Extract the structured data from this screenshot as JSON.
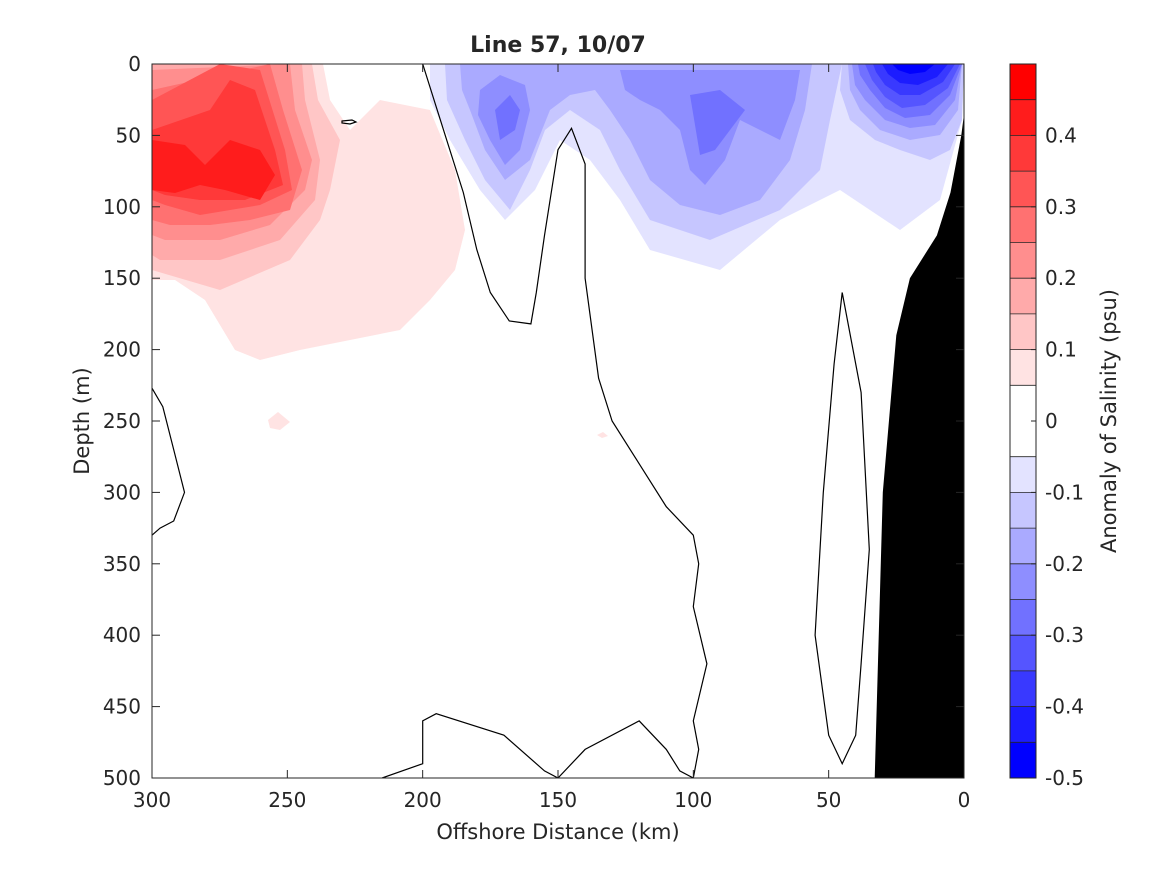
{
  "chart_data": {
    "type": "contourf",
    "title": "Line 57, 10/07",
    "xlabel": "Offshore Distance (km)",
    "ylabel": "Depth (m)",
    "colorbar_label": "Anomaly of Salinity (psu)",
    "xlim": [
      300,
      0
    ],
    "ylim": [
      500,
      0
    ],
    "x_reversed": true,
    "y_reversed": true,
    "x_ticks": [
      300,
      250,
      200,
      150,
      100,
      50,
      0
    ],
    "x_tick_labels": [
      "300",
      "250",
      "200",
      "150",
      "100",
      "50",
      "0"
    ],
    "y_ticks": [
      0,
      50,
      100,
      150,
      200,
      250,
      300,
      350,
      400,
      450,
      500
    ],
    "y_tick_labels": [
      "0",
      "50",
      "100",
      "150",
      "200",
      "250",
      "300",
      "350",
      "400",
      "450",
      "500"
    ],
    "colorbar": {
      "range": [
        -0.5,
        0.5
      ],
      "ticks": [
        0.4,
        0.3,
        0.2,
        0.1,
        0,
        -0.1,
        -0.2,
        -0.3,
        -0.4,
        -0.5
      ],
      "tick_labels": [
        "0.4",
        "0.3",
        "0.2",
        "0.1",
        "0",
        "-0.1",
        "-0.2",
        "-0.3",
        "-0.4",
        "-0.5"
      ],
      "levels": [
        -0.5,
        -0.45,
        -0.4,
        -0.35,
        -0.3,
        -0.25,
        -0.2,
        -0.15,
        -0.1,
        -0.05,
        0.05,
        0.1,
        0.15,
        0.2,
        0.25,
        0.3,
        0.35,
        0.4,
        0.45,
        0.5
      ],
      "colors": [
        "#0000ff",
        "#1c1cff",
        "#3939ff",
        "#5555ff",
        "#7171ff",
        "#8e8eff",
        "#aaaaff",
        "#c6c6ff",
        "#e3e3ff",
        "#ffffff",
        "#ffe3e3",
        "#ffc6c6",
        "#ffaaaa",
        "#ff8e8e",
        "#ff7171",
        "#ff5555",
        "#ff3939",
        "#ff1c1c",
        "#ff0000"
      ]
    },
    "anomaly_regions": [
      {
        "name": "salty-core-offshore",
        "level": 0.4,
        "x": [
          295,
          260
        ],
        "depth": [
          60,
          100
        ]
      },
      {
        "name": "salty-layer-offshore",
        "level": 0.1,
        "x": [
          300,
          200
        ],
        "depth": [
          0,
          200
        ]
      },
      {
        "name": "fresh-upper-central",
        "level": -0.2,
        "x": [
          190,
          90
        ],
        "depth": [
          0,
          120
        ]
      },
      {
        "name": "fresh-core-nearshore",
        "level": -0.4,
        "x": [
          40,
          5
        ],
        "depth": [
          0,
          40
        ]
      }
    ],
    "land_mask": {
      "color": "#000000",
      "x": [
        33,
        30,
        25,
        20,
        10,
        5,
        1,
        0,
        0
      ],
      "depth": [
        500,
        300,
        190,
        150,
        120,
        90,
        50,
        35,
        500
      ]
    },
    "zero_contours": [
      {
        "x": [
          200,
          195,
          185,
          180,
          175,
          168,
          160,
          158,
          155,
          150,
          145,
          140,
          140,
          135,
          130,
          120,
          110,
          100,
          98,
          100,
          95,
          100,
          98,
          100,
          105,
          110,
          120,
          140,
          150,
          155,
          170,
          195,
          200,
          200,
          215
        ],
        "depth": [
          0,
          30,
          90,
          130,
          160,
          180,
          182,
          160,
          120,
          60,
          45,
          70,
          150,
          220,
          250,
          280,
          310,
          330,
          350,
          380,
          420,
          460,
          480,
          500,
          495,
          480,
          460,
          480,
          500,
          495,
          470,
          455,
          460,
          490,
          500
        ]
      },
      {
        "x": [
          300,
          296,
          292,
          288,
          292,
          297,
          300
        ],
        "depth": [
          227,
          240,
          270,
          300,
          320,
          325,
          330
        ]
      },
      {
        "x": [
          45,
          38,
          35,
          38,
          40,
          45,
          50,
          55,
          52,
          48,
          45
        ],
        "depth": [
          160,
          230,
          340,
          420,
          470,
          490,
          470,
          400,
          300,
          210,
          160
        ]
      }
    ]
  }
}
